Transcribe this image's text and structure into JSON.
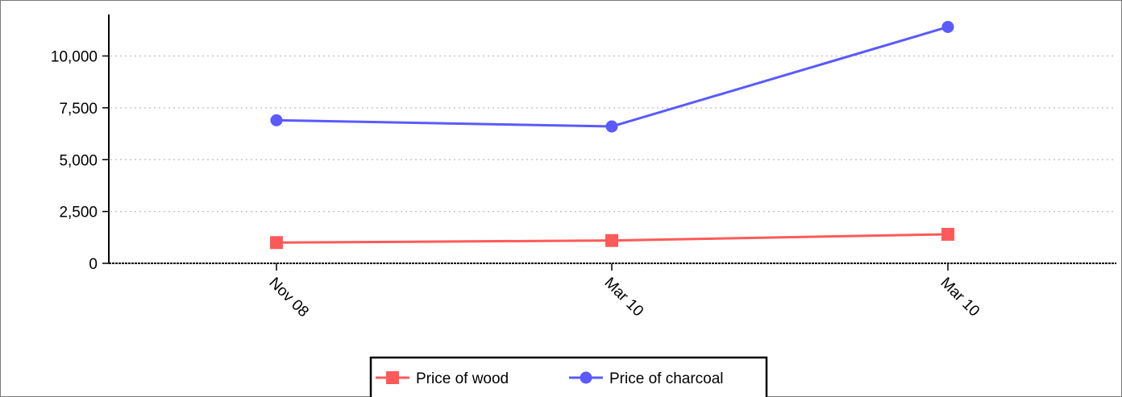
{
  "chart_data": {
    "type": "line",
    "title": "",
    "xlabel": "",
    "ylabel": "",
    "categories": [
      "Nov 08",
      "Mar 10",
      "Mar 10"
    ],
    "series": [
      {
        "name": "Price of wood",
        "values": [
          1000,
          1100,
          1400
        ],
        "color": "#ff5a5a",
        "marker": "square"
      },
      {
        "name": "Price of charcoal",
        "values": [
          6900,
          6600,
          11400
        ],
        "color": "#5a5aff",
        "marker": "circle"
      }
    ],
    "ylim": [
      0,
      12000
    ],
    "yticks": [
      0,
      2500,
      5000,
      7500,
      10000
    ],
    "ytick_labels": [
      "0",
      "2,500",
      "5,000",
      "7,500",
      "10,000"
    ],
    "grid": true,
    "legend_position": "bottom-center"
  }
}
